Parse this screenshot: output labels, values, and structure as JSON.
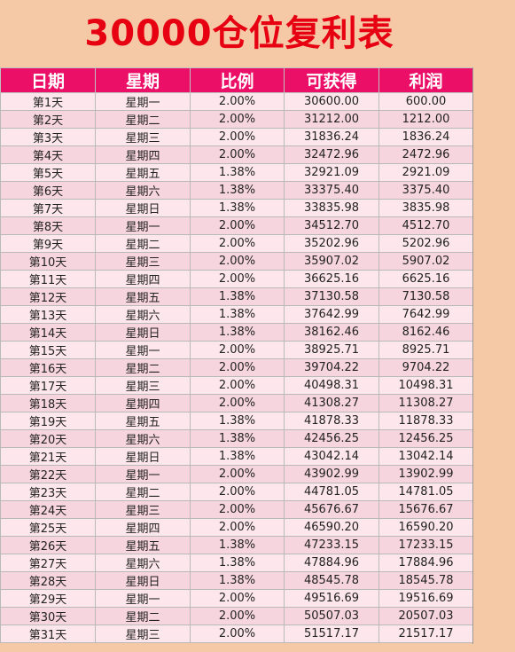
{
  "title": "30000仓位复利表",
  "table": {
    "headers": [
      "日期",
      "星期",
      "比例",
      "可获得",
      "利润"
    ],
    "rows": [
      [
        "第1天",
        "星期一",
        "2.00%",
        "30600.00",
        "600.00"
      ],
      [
        "第2天",
        "星期二",
        "2.00%",
        "31212.00",
        "1212.00"
      ],
      [
        "第3天",
        "星期三",
        "2.00%",
        "31836.24",
        "1836.24"
      ],
      [
        "第4天",
        "星期四",
        "2.00%",
        "32472.96",
        "2472.96"
      ],
      [
        "第5天",
        "星期五",
        "1.38%",
        "32921.09",
        "2921.09"
      ],
      [
        "第6天",
        "星期六",
        "1.38%",
        "33375.40",
        "3375.40"
      ],
      [
        "第7天",
        "星期日",
        "1.38%",
        "33835.98",
        "3835.98"
      ],
      [
        "第8天",
        "星期一",
        "2.00%",
        "34512.70",
        "4512.70"
      ],
      [
        "第9天",
        "星期二",
        "2.00%",
        "35202.96",
        "5202.96"
      ],
      [
        "第10天",
        "星期三",
        "2.00%",
        "35907.02",
        "5907.02"
      ],
      [
        "第11天",
        "星期四",
        "2.00%",
        "36625.16",
        "6625.16"
      ],
      [
        "第12天",
        "星期五",
        "1.38%",
        "37130.58",
        "7130.58"
      ],
      [
        "第13天",
        "星期六",
        "1.38%",
        "37642.99",
        "7642.99"
      ],
      [
        "第14天",
        "星期日",
        "1.38%",
        "38162.46",
        "8162.46"
      ],
      [
        "第15天",
        "星期一",
        "2.00%",
        "38925.71",
        "8925.71"
      ],
      [
        "第16天",
        "星期二",
        "2.00%",
        "39704.22",
        "9704.22"
      ],
      [
        "第17天",
        "星期三",
        "2.00%",
        "40498.31",
        "10498.31"
      ],
      [
        "第18天",
        "星期四",
        "2.00%",
        "41308.27",
        "11308.27"
      ],
      [
        "第19天",
        "星期五",
        "1.38%",
        "41878.33",
        "11878.33"
      ],
      [
        "第20天",
        "星期六",
        "1.38%",
        "42456.25",
        "12456.25"
      ],
      [
        "第21天",
        "星期日",
        "1.38%",
        "43042.14",
        "13042.14"
      ],
      [
        "第22天",
        "星期一",
        "2.00%",
        "43902.99",
        "13902.99"
      ],
      [
        "第23天",
        "星期二",
        "2.00%",
        "44781.05",
        "14781.05"
      ],
      [
        "第24天",
        "星期三",
        "2.00%",
        "45676.67",
        "15676.67"
      ],
      [
        "第25天",
        "星期四",
        "2.00%",
        "46590.20",
        "16590.20"
      ],
      [
        "第26天",
        "星期五",
        "1.38%",
        "47233.15",
        "17233.15"
      ],
      [
        "第27天",
        "星期六",
        "1.38%",
        "47884.96",
        "17884.96"
      ],
      [
        "第28天",
        "星期日",
        "1.38%",
        "48545.78",
        "18545.78"
      ],
      [
        "第29天",
        "星期一",
        "2.00%",
        "49516.69",
        "19516.69"
      ],
      [
        "第30天",
        "星期二",
        "2.00%",
        "50507.03",
        "20507.03"
      ],
      [
        "第31天",
        "星期三",
        "2.00%",
        "51517.17",
        "21517.17"
      ]
    ]
  },
  "colors": {
    "background": "#f6c9a6",
    "title": "#e60012",
    "header": "#ec0f67",
    "row_light": "#fde7ec",
    "row_dark": "#f7d5de"
  }
}
